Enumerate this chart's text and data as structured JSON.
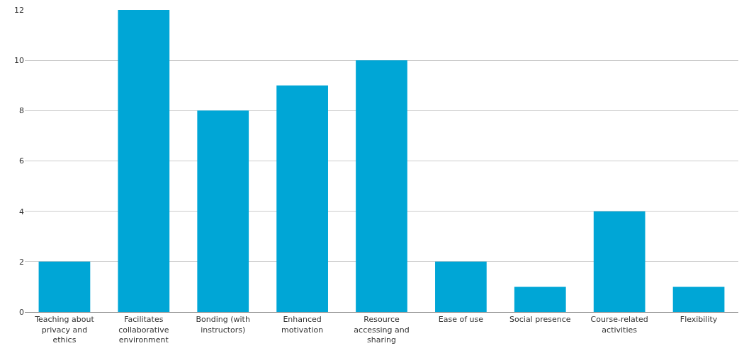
{
  "chart_data": {
    "type": "bar",
    "categories": [
      "Teaching about privacy and ethics",
      "Facilitates collaborative environment",
      "Bonding (with instructors)",
      "Enhanced motivation",
      "Resource accessing and sharing",
      "Ease of use",
      "Social presence",
      "Course-related activities",
      "Flexibility"
    ],
    "values": [
      2,
      12,
      8,
      9,
      10,
      2,
      1,
      4,
      1
    ],
    "color": "#00a6d6",
    "ylim": [
      0,
      12
    ],
    "yticks": [
      0,
      2,
      4,
      6,
      8,
      10,
      12
    ],
    "grid": "y"
  }
}
